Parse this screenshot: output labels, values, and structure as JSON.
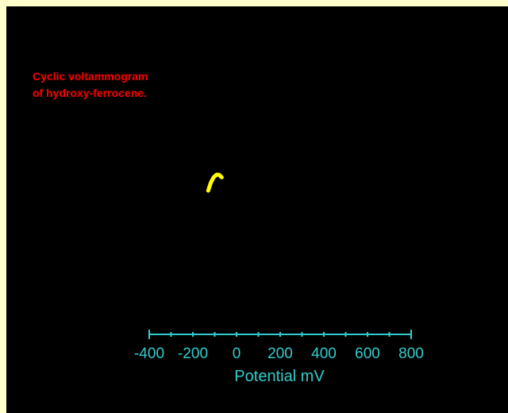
{
  "chart_data": {
    "type": "line",
    "title": "Cyclic voltammogram",
    "subtitle": "of hydroxy-ferrocene.",
    "xlabel": "Potential mV",
    "ylabel": "",
    "x_ticks": [
      "-400",
      "-200",
      "0",
      "200",
      "400",
      "600",
      "800"
    ],
    "x_tick_values": [
      -400,
      -200,
      0,
      200,
      400,
      600,
      800
    ],
    "xlim": [
      -400,
      800
    ],
    "grid": false,
    "series": [
      {
        "x": [
          -130,
          -118,
          -105,
          -92,
          -80,
          -68
        ],
        "y": [
          0.0,
          0.6,
          1.0,
          1.2,
          1.2,
          1.0
        ]
      }
    ],
    "ylim": [
      -12,
      12
    ],
    "colors": {
      "background": "#000000",
      "page": "#ffffcc",
      "title": "#ff0000",
      "axis": "#33cccc",
      "trace": "#ffff00"
    }
  }
}
